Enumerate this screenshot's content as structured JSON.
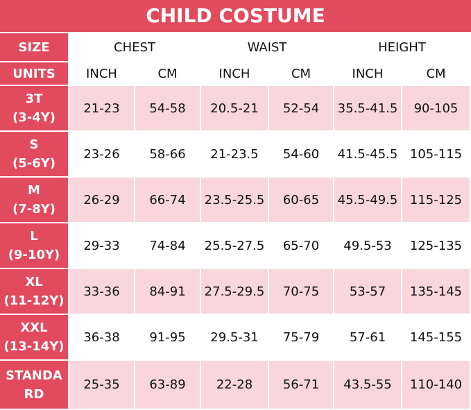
{
  "title": "CHILD COSTUME",
  "header": {
    "size_label": "SIZE",
    "groups": [
      "CHEST",
      "WAIST",
      "HEIGHT"
    ],
    "units_label": "UNITS",
    "units": [
      "INCH",
      "CM",
      "INCH",
      "CM",
      "INCH",
      "CM"
    ]
  },
  "rows": [
    {
      "size": [
        "3T",
        "(3-4Y)"
      ],
      "values": [
        "21-23",
        "54-58",
        "20.5-21",
        "52-54",
        "35.5-41.5",
        "90-105"
      ]
    },
    {
      "size": [
        "S",
        "(5-6Y)"
      ],
      "values": [
        "23-26",
        "58-66",
        "21-23.5",
        "54-60",
        "41.5-45.5",
        "105-115"
      ]
    },
    {
      "size": [
        "M",
        "(7-8Y)"
      ],
      "values": [
        "26-29",
        "66-74",
        "23.5-25.5",
        "60-65",
        "45.5-49.5",
        "115-125"
      ]
    },
    {
      "size": [
        "L",
        "(9-10Y)"
      ],
      "values": [
        "29-33",
        "74-84",
        "25.5-27.5",
        "65-70",
        "49.5-53",
        "125-135"
      ]
    },
    {
      "size": [
        "XL",
        "(11-12Y)"
      ],
      "values": [
        "33-36",
        "84-91",
        "27.5-29.5",
        "70-75",
        "53-57",
        "135-145"
      ]
    },
    {
      "size": [
        "XXL",
        "(13-14Y)"
      ],
      "values": [
        "36-38",
        "91-95",
        "29.5-31",
        "75-79",
        "57-61",
        "145-155"
      ]
    },
    {
      "size": [
        "STANDA",
        "RD"
      ],
      "values": [
        "25-35",
        "63-89",
        "22-28",
        "56-71",
        "43.5-55",
        "110-140"
      ]
    }
  ]
}
